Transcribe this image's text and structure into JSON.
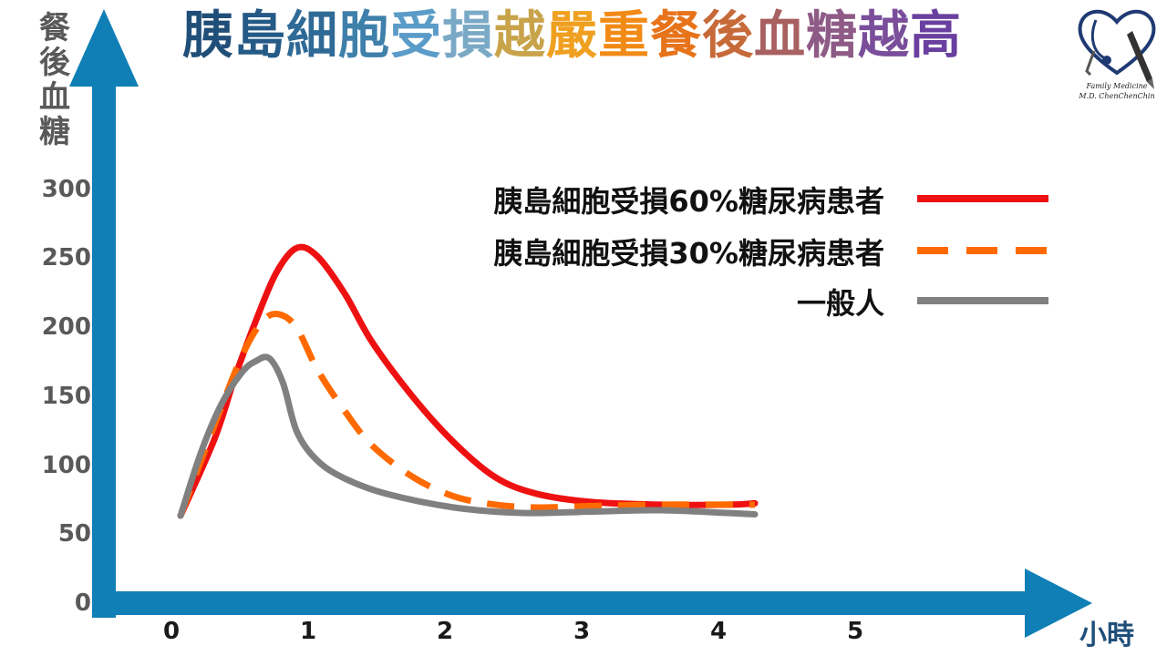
{
  "title_chars": [
    {
      "ch": "胰",
      "color": "#1f4e79"
    },
    {
      "ch": "島",
      "color": "#255a87"
    },
    {
      "ch": "細",
      "color": "#2f6a97"
    },
    {
      "ch": "胞",
      "color": "#3f80aa"
    },
    {
      "ch": "受",
      "color": "#5a9bc8"
    },
    {
      "ch": "損",
      "color": "#7aa9c6"
    },
    {
      "ch": "越",
      "color": "#c8a34a"
    },
    {
      "ch": "嚴",
      "color": "#f0a020"
    },
    {
      "ch": "重",
      "color": "#f28a16"
    },
    {
      "ch": "餐",
      "color": "#e7731a"
    },
    {
      "ch": "後",
      "color": "#c76a3a"
    },
    {
      "ch": "血",
      "color": "#a86060"
    },
    {
      "ch": "糖",
      "color": "#8e5a86"
    },
    {
      "ch": "越",
      "color": "#7a4e9a"
    },
    {
      "ch": "高",
      "color": "#6a3fa0"
    }
  ],
  "y_axis_label_chars": [
    "餐",
    "後",
    "血",
    "糖"
  ],
  "x_axis_unit": "小時",
  "logo": {
    "line1": "Family Medicine",
    "line2": "M.D. ChenChenChin"
  },
  "colors": {
    "axis": "#0f7fb5",
    "red": "#ee1111",
    "orange": "#ff6a00",
    "gray": "#808080"
  },
  "chart_data": {
    "type": "line",
    "xlim": [
      0,
      5
    ],
    "ylim": [
      0,
      300
    ],
    "x_ticks": [
      "0",
      "1",
      "2",
      "3",
      "4",
      "5"
    ],
    "y_ticks": [
      "0",
      "50",
      "100",
      "150",
      "200",
      "250",
      "300"
    ],
    "grid": false,
    "legend_position": "top-right",
    "series": [
      {
        "name": "胰島細胞受損60%糖尿病患者",
        "color": "#ee1111",
        "style": "solid",
        "x": [
          0,
          0.25,
          0.4,
          0.55,
          0.7,
          0.85,
          1.0,
          1.2,
          1.4,
          1.7,
          2.0,
          2.3,
          2.6,
          3.0,
          3.5,
          4.0,
          4.2
        ],
        "y": [
          64,
          120,
          165,
          205,
          240,
          258,
          252,
          225,
          190,
          150,
          117,
          92,
          80,
          74,
          72,
          72,
          73
        ]
      },
      {
        "name": "胰島細胞受損30%糖尿病患者",
        "color": "#ff6a00",
        "style": "dashed",
        "x": [
          0,
          0.25,
          0.45,
          0.6,
          0.72,
          0.85,
          1.0,
          1.2,
          1.4,
          1.7,
          2.0,
          2.3,
          2.6,
          3.0,
          3.5,
          4.0,
          4.2
        ],
        "y": [
          64,
          130,
          180,
          205,
          210,
          200,
          170,
          140,
          115,
          92,
          78,
          72,
          70,
          71,
          72,
          72,
          72
        ]
      },
      {
        "name": "一般人",
        "color": "#808080",
        "style": "solid",
        "x": [
          0,
          0.15,
          0.3,
          0.45,
          0.55,
          0.65,
          0.75,
          0.85,
          1.0,
          1.2,
          1.5,
          2.0,
          2.5,
          3.0,
          3.5,
          4.0,
          4.2
        ],
        "y": [
          64,
          110,
          145,
          168,
          176,
          178,
          160,
          125,
          104,
          91,
          80,
          70,
          66,
          67,
          68,
          66,
          65
        ]
      }
    ]
  }
}
